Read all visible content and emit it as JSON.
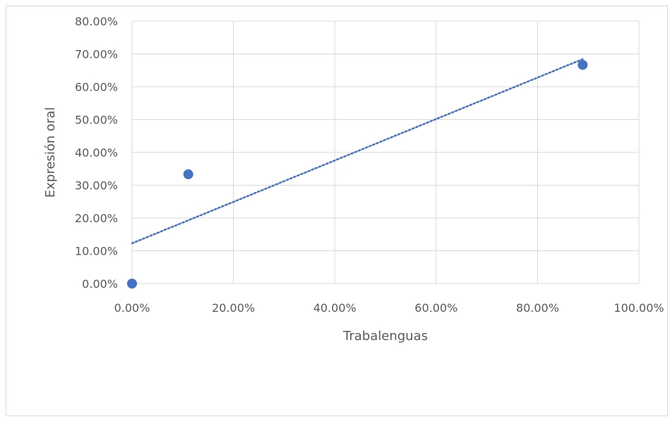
{
  "chart_data": {
    "type": "scatter",
    "title": "",
    "xlabel": "Trabalenguas",
    "ylabel": "Expresión oral",
    "xlim": [
      0,
      1
    ],
    "ylim": [
      0,
      0.8
    ],
    "x_ticks": [
      0,
      0.2,
      0.4,
      0.6,
      0.8,
      1.0
    ],
    "y_ticks": [
      0,
      0.1,
      0.2,
      0.3,
      0.4,
      0.5,
      0.6,
      0.7,
      0.8
    ],
    "x_tick_labels": [
      "0.00%",
      "20.00%",
      "40.00%",
      "60.00%",
      "80.00%",
      "100.00%"
    ],
    "y_tick_labels": [
      "0.00%",
      "10.00%",
      "20.00%",
      "30.00%",
      "40.00%",
      "50.00%",
      "60.00%",
      "70.00%",
      "80.00%"
    ],
    "grid": true,
    "legend": "none",
    "series": [
      {
        "points": [
          {
            "x": 0.0,
            "y": 0.0
          },
          {
            "x": 0.111,
            "y": 0.3333
          },
          {
            "x": 0.889,
            "y": 0.6667
          }
        ]
      }
    ],
    "trendline": {
      "type": "linear",
      "style": "dotted",
      "x_range": [
        0,
        0.889
      ]
    },
    "colors": {
      "marker": "#4472c4",
      "trendline": "#4472c4",
      "grid": "#d9d9d9",
      "text": "#595959"
    }
  }
}
